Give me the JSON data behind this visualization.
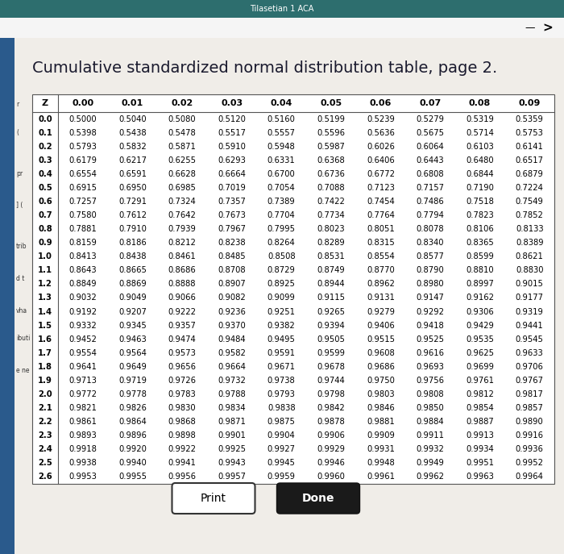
{
  "title": "Cumulative standardized normal distribution table, page 2.",
  "col_headers": [
    "0.00",
    "0.01",
    "0.02",
    "0.03",
    "0.04",
    "0.05",
    "0.06",
    "0.07",
    "0.08",
    "0.09"
  ],
  "row_labels": [
    "0.0",
    "0.1",
    "0.2",
    "0.3",
    "0.4",
    "0.5",
    "0.6",
    "0.7",
    "0.8",
    "0.9",
    "1.0",
    "1.1",
    "1.2",
    "1.3",
    "1.4",
    "1.5",
    "1.6",
    "1.7",
    "1.8",
    "1.9",
    "2.0",
    "2.1",
    "2.2",
    "2.3",
    "2.4",
    "2.5",
    "2.6"
  ],
  "table_data": [
    [
      "0.5000",
      "0.5040",
      "0.5080",
      "0.5120",
      "0.5160",
      "0.5199",
      "0.5239",
      "0.5279",
      "0.5319",
      "0.5359"
    ],
    [
      "0.5398",
      "0.5438",
      "0.5478",
      "0.5517",
      "0.5557",
      "0.5596",
      "0.5636",
      "0.5675",
      "0.5714",
      "0.5753"
    ],
    [
      "0.5793",
      "0.5832",
      "0.5871",
      "0.5910",
      "0.5948",
      "0.5987",
      "0.6026",
      "0.6064",
      "0.6103",
      "0.6141"
    ],
    [
      "0.6179",
      "0.6217",
      "0.6255",
      "0.6293",
      "0.6331",
      "0.6368",
      "0.6406",
      "0.6443",
      "0.6480",
      "0.6517"
    ],
    [
      "0.6554",
      "0.6591",
      "0.6628",
      "0.6664",
      "0.6700",
      "0.6736",
      "0.6772",
      "0.6808",
      "0.6844",
      "0.6879"
    ],
    [
      "0.6915",
      "0.6950",
      "0.6985",
      "0.7019",
      "0.7054",
      "0.7088",
      "0.7123",
      "0.7157",
      "0.7190",
      "0.7224"
    ],
    [
      "0.7257",
      "0.7291",
      "0.7324",
      "0.7357",
      "0.7389",
      "0.7422",
      "0.7454",
      "0.7486",
      "0.7518",
      "0.7549"
    ],
    [
      "0.7580",
      "0.7612",
      "0.7642",
      "0.7673",
      "0.7704",
      "0.7734",
      "0.7764",
      "0.7794",
      "0.7823",
      "0.7852"
    ],
    [
      "0.7881",
      "0.7910",
      "0.7939",
      "0.7967",
      "0.7995",
      "0.8023",
      "0.8051",
      "0.8078",
      "0.8106",
      "0.8133"
    ],
    [
      "0.8159",
      "0.8186",
      "0.8212",
      "0.8238",
      "0.8264",
      "0.8289",
      "0.8315",
      "0.8340",
      "0.8365",
      "0.8389"
    ],
    [
      "0.8413",
      "0.8438",
      "0.8461",
      "0.8485",
      "0.8508",
      "0.8531",
      "0.8554",
      "0.8577",
      "0.8599",
      "0.8621"
    ],
    [
      "0.8643",
      "0.8665",
      "0.8686",
      "0.8708",
      "0.8729",
      "0.8749",
      "0.8770",
      "0.8790",
      "0.8810",
      "0.8830"
    ],
    [
      "0.8849",
      "0.8869",
      "0.8888",
      "0.8907",
      "0.8925",
      "0.8944",
      "0.8962",
      "0.8980",
      "0.8997",
      "0.9015"
    ],
    [
      "0.9032",
      "0.9049",
      "0.9066",
      "0.9082",
      "0.9099",
      "0.9115",
      "0.9131",
      "0.9147",
      "0.9162",
      "0.9177"
    ],
    [
      "0.9192",
      "0.9207",
      "0.9222",
      "0.9236",
      "0.9251",
      "0.9265",
      "0.9279",
      "0.9292",
      "0.9306",
      "0.9319"
    ],
    [
      "0.9332",
      "0.9345",
      "0.9357",
      "0.9370",
      "0.9382",
      "0.9394",
      "0.9406",
      "0.9418",
      "0.9429",
      "0.9441"
    ],
    [
      "0.9452",
      "0.9463",
      "0.9474",
      "0.9484",
      "0.9495",
      "0.9505",
      "0.9515",
      "0.9525",
      "0.9535",
      "0.9545"
    ],
    [
      "0.9554",
      "0.9564",
      "0.9573",
      "0.9582",
      "0.9591",
      "0.9599",
      "0.9608",
      "0.9616",
      "0.9625",
      "0.9633"
    ],
    [
      "0.9641",
      "0.9649",
      "0.9656",
      "0.9664",
      "0.9671",
      "0.9678",
      "0.9686",
      "0.9693",
      "0.9699",
      "0.9706"
    ],
    [
      "0.9713",
      "0.9719",
      "0.9726",
      "0.9732",
      "0.9738",
      "0.9744",
      "0.9750",
      "0.9756",
      "0.9761",
      "0.9767"
    ],
    [
      "0.9772",
      "0.9778",
      "0.9783",
      "0.9788",
      "0.9793",
      "0.9798",
      "0.9803",
      "0.9808",
      "0.9812",
      "0.9817"
    ],
    [
      "0.9821",
      "0.9826",
      "0.9830",
      "0.9834",
      "0.9838",
      "0.9842",
      "0.9846",
      "0.9850",
      "0.9854",
      "0.9857"
    ],
    [
      "0.9861",
      "0.9864",
      "0.9868",
      "0.9871",
      "0.9875",
      "0.9878",
      "0.9881",
      "0.9884",
      "0.9887",
      "0.9890"
    ],
    [
      "0.9893",
      "0.9896",
      "0.9898",
      "0.9901",
      "0.9904",
      "0.9906",
      "0.9909",
      "0.9911",
      "0.9913",
      "0.9916"
    ],
    [
      "0.9918",
      "0.9920",
      "0.9922",
      "0.9925",
      "0.9927",
      "0.9929",
      "0.9931",
      "0.9932",
      "0.9934",
      "0.9936"
    ],
    [
      "0.9938",
      "0.9940",
      "0.9941",
      "0.9943",
      "0.9945",
      "0.9946",
      "0.9948",
      "0.9949",
      "0.9951",
      "0.9952"
    ],
    [
      "0.9953",
      "0.9955",
      "0.9956",
      "0.9957",
      "0.9959",
      "0.9960",
      "0.9961",
      "0.9962",
      "0.9963",
      "0.9964"
    ]
  ],
  "page_bg": "#dcdcdc",
  "content_bg": "#f0ede8",
  "table_bg": "#ffffff",
  "topbar_color": "#2d6e6e",
  "sidebar_color": "#2a5a8c",
  "title_fontsize": 14,
  "cell_fontsize": 7.2,
  "header_fontsize": 8.0,
  "z_label": "Z",
  "print_btn_color": "#ffffff",
  "done_btn_color": "#1a1a1a",
  "print_btn_text": "Print",
  "done_btn_text": "Done",
  "sidebar_texts": [
    "r",
    "(",
    "pr",
    "] (",
    "trib",
    "d t",
    "vha",
    "ibuti",
    "e ne"
  ],
  "topbar_text": "Tilasetian 1 ACA"
}
